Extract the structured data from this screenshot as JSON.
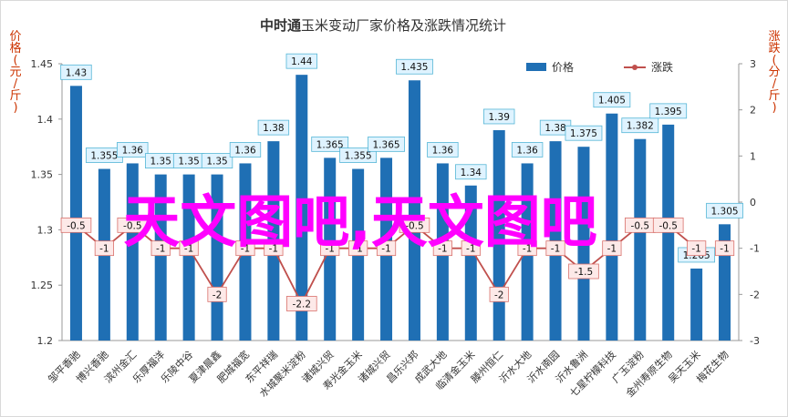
{
  "chart_data": {
    "type": "bar",
    "title": "中时通玉米变动厂家价格及涨跌情况统计",
    "title_emphasis": "中时通",
    "title_rest": "玉米变动厂家价格及涨跌情况统计",
    "categories": [
      "邹平香驰",
      "博兴香驰",
      "滨州金汇",
      "乐厚福洋",
      "乐陵中谷",
      "夏津晨鑫",
      "肥城福宽",
      "东平祥瑞",
      "水城聚米淀粉",
      "诸城兴贸",
      "寿光金玉米",
      "诸城兴贸",
      "昌乐兴邦",
      "成武大地",
      "临清金玉米",
      "滕州恒仁",
      "沂水大地",
      "沂水南园",
      "沂水鲁洲",
      "七星柠檬科技",
      "广玉淀粉",
      "金州寿原生物",
      "吴天玉米",
      "梅花生物"
    ],
    "y_left": {
      "label": "价格(元/斤)",
      "ylim": [
        1.2,
        1.45
      ],
      "ticks": [
        "1.2",
        "1.25",
        "1.3",
        "1.35",
        "1.4",
        "1.45"
      ]
    },
    "y_right": {
      "label": "涨跌(分/斤)",
      "ylim": [
        -3,
        3
      ],
      "ticks": [
        "-3",
        "-2",
        "-1",
        "0",
        "1",
        "2",
        "3"
      ]
    },
    "series": [
      {
        "name": "价格",
        "type": "bar",
        "color": "#1f6fb4",
        "values": [
          1.43,
          1.355,
          1.36,
          1.35,
          1.35,
          1.35,
          1.36,
          1.38,
          1.44,
          1.365,
          1.355,
          1.365,
          1.435,
          1.36,
          1.34,
          1.39,
          1.36,
          1.38,
          1.375,
          1.405,
          1.382,
          1.395,
          1.265,
          1.305
        ],
        "labels": [
          "1.43",
          "1.355",
          "1.36",
          "1.35",
          "1.35",
          "1.35",
          "1.36",
          "1.38",
          "1.44",
          "1.365",
          "1.355",
          "1.365",
          "1.435",
          "1.36",
          "1.34",
          "1.39",
          "1.36",
          "1.38",
          "1.375",
          "1.405",
          "1.382",
          "1.395",
          "1.265",
          "1.305"
        ]
      },
      {
        "name": "涨跌",
        "type": "line",
        "color": "#c0504d",
        "values": [
          -0.5,
          -1,
          -0.5,
          -1,
          -1,
          -2,
          -1,
          -1,
          -2.2,
          -1,
          -1,
          -1,
          -0.5,
          -1,
          -1,
          -2,
          -1,
          -1,
          -1.5,
          -1,
          -0.5,
          -0.5,
          -1,
          -1
        ],
        "labels": [
          "-0.5",
          "-1",
          "-0.5",
          "-1",
          "-1",
          "-2",
          "-1",
          "-1",
          "-2.2",
          "-1",
          "-1",
          "-1",
          "-0.5",
          "-1",
          "-1",
          "-2",
          "-1",
          "-1",
          "-1.5",
          "-1",
          "-0.5",
          "-0.5",
          "-1",
          "-1"
        ]
      }
    ],
    "legend": {
      "placement": "top-right"
    },
    "grid": false
  },
  "watermark": "天文图吧,天文图吧"
}
